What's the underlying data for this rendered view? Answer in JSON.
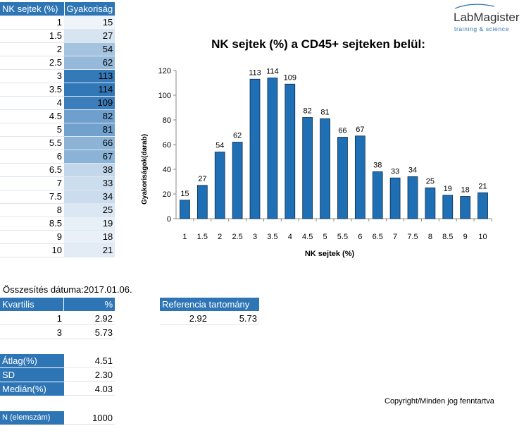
{
  "freq_table": {
    "headers": [
      "NK sejtek (%)",
      "Gyakoriság"
    ]
  },
  "summary": {
    "date_label": "Összesítés dátuma:",
    "date_value": "2017.01.06.",
    "quartile_header": "Kvartilis",
    "quartile_unit": "%",
    "quartiles": [
      {
        "q": "1",
        "value": "2.92"
      },
      {
        "q": "3",
        "value": "5.73"
      }
    ],
    "reference_header": "Referencia tartomány",
    "reference_low": "2.92",
    "reference_high": "5.73",
    "mean_label": "Átlag(%)",
    "mean_value": "4.51",
    "sd_label": "SD",
    "sd_value": "2.30",
    "median_label": "Medián(%)",
    "median_value": "4.03",
    "n_label": "N (elemszám)",
    "n_value": "1000"
  },
  "logo": {
    "name": "LabMagister",
    "tagline": "training & science"
  },
  "copyright": "Copyright/Minden jog fenntartva",
  "colors": {
    "bar": "#1f6fb5",
    "bar_outline": "#0c2d4d",
    "header_bg": "#2e75b6",
    "scale_high": "#2e75b6",
    "scale_low": "#ffffff"
  },
  "chart_data": {
    "type": "bar",
    "title": "NK sejtek (%) a CD45+ sejteken belül:",
    "xlabel": "NK sejtek (%)",
    "ylabel": "Gyakoriságok(darab)",
    "categories": [
      "1",
      "1.5",
      "2",
      "2.5",
      "3",
      "3.5",
      "4",
      "4.5",
      "5",
      "5.5",
      "6",
      "6.5",
      "7",
      "7.5",
      "8",
      "8.5",
      "9",
      "10"
    ],
    "values": [
      15,
      27,
      54,
      62,
      113,
      114,
      109,
      82,
      81,
      66,
      67,
      38,
      33,
      34,
      25,
      19,
      18,
      21
    ],
    "ylim": [
      0,
      120
    ],
    "yticks": [
      "0",
      "20",
      "40",
      "60",
      "80",
      "100",
      "120"
    ],
    "grid": false,
    "legend": "none"
  }
}
